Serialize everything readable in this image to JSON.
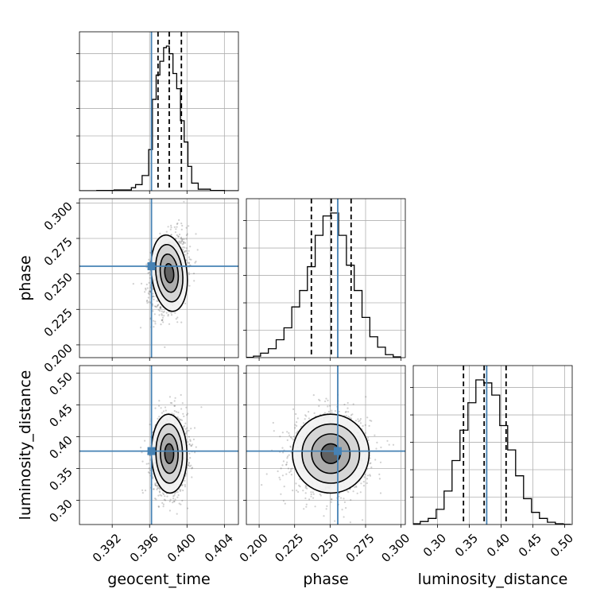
{
  "chart_data": {
    "type": "corner",
    "parameters": [
      "geocent_time",
      "phase",
      "luminosity_distance"
    ],
    "truths": {
      "geocent_time": 0.3962,
      "phase": 0.2554,
      "luminosity_distance": 0.3775
    },
    "truth_color": "#4682b4",
    "ranges": {
      "geocent_time": [
        0.3885,
        0.4055
      ],
      "phase": [
        0.191,
        0.303
      ],
      "luminosity_distance": [
        0.262,
        0.512
      ]
    },
    "ticks": {
      "geocent_time": [
        0.392,
        0.396,
        0.4,
        0.404
      ],
      "phase": [
        0.2,
        0.225,
        0.25,
        0.275,
        0.3
      ],
      "luminosity_distance": [
        0.3,
        0.35,
        0.4,
        0.45,
        0.5
      ]
    },
    "tick_labels": {
      "geocent_time": [
        "0.392",
        "0.396",
        "0.400",
        "0.404"
      ],
      "phase": [
        "0.200",
        "0.225",
        "0.250",
        "0.275",
        "0.300"
      ],
      "luminosity_distance": [
        "0.30",
        "0.35",
        "0.40",
        "0.45",
        "0.50"
      ]
    },
    "quantiles": {
      "geocent_time": [
        0.3969,
        0.3981,
        0.3994
      ],
      "phase": [
        0.2368,
        0.2508,
        0.2648
      ],
      "luminosity_distance": [
        0.341,
        0.3735,
        0.408
      ]
    },
    "marginals": {
      "geocent_time": {
        "edges": [
          0.3885,
          0.39035,
          0.3922,
          0.39405,
          0.3945,
          0.3952,
          0.3959,
          0.3963,
          0.3967,
          0.3971,
          0.3975,
          0.3978,
          0.3981,
          0.3985,
          0.3989,
          0.3993,
          0.3997,
          0.4001,
          0.4005,
          0.4012,
          0.4025,
          0.404,
          0.4055
        ],
        "heights": [
          0,
          0.002,
          0.005,
          0.02,
          0.04,
          0.1,
          0.27,
          0.6,
          0.76,
          0.85,
          0.94,
          0.95,
          0.9,
          0.77,
          0.67,
          0.46,
          0.32,
          0.16,
          0.05,
          0.01,
          0.002,
          0
        ]
      },
      "phase": {
        "edges": [
          0.191,
          0.196,
          0.201,
          0.2065,
          0.212,
          0.2175,
          0.223,
          0.2285,
          0.234,
          0.2395,
          0.245,
          0.2505,
          0.256,
          0.2615,
          0.267,
          0.2725,
          0.278,
          0.2835,
          0.289,
          0.2945,
          0.3
        ],
        "heights": [
          0.002,
          0.01,
          0.03,
          0.06,
          0.12,
          0.2,
          0.34,
          0.45,
          0.61,
          0.82,
          0.95,
          0.97,
          0.82,
          0.62,
          0.45,
          0.27,
          0.14,
          0.07,
          0.02,
          0.005
        ]
      },
      "luminosity_distance": {
        "edges": [
          0.262,
          0.273,
          0.2855,
          0.298,
          0.3105,
          0.323,
          0.3355,
          0.348,
          0.3605,
          0.373,
          0.3855,
          0.398,
          0.4105,
          0.423,
          0.4355,
          0.448,
          0.4605,
          0.473,
          0.4855,
          0.498,
          0.51
        ],
        "heights": [
          0.005,
          0.02,
          0.04,
          0.1,
          0.22,
          0.42,
          0.62,
          0.8,
          0.95,
          0.93,
          0.85,
          0.65,
          0.49,
          0.32,
          0.17,
          0.08,
          0.04,
          0.015,
          0.005,
          0.001
        ]
      }
    },
    "joint": [
      {
        "x": "geocent_time",
        "y": "phase",
        "mean": [
          0.3981,
          0.2505
        ],
        "sd": [
          0.00095,
          0.0135
        ],
        "rho": 0.25
      },
      {
        "x": "geocent_time",
        "y": "luminosity_distance",
        "mean": [
          0.3981,
          0.3735
        ],
        "sd": [
          0.00095,
          0.031
        ],
        "rho": 0.05
      },
      {
        "x": "phase",
        "y": "luminosity_distance",
        "mean": [
          0.2505,
          0.3735
        ],
        "sd": [
          0.0135,
          0.031
        ],
        "rho": 0.03
      }
    ],
    "grid": true
  }
}
